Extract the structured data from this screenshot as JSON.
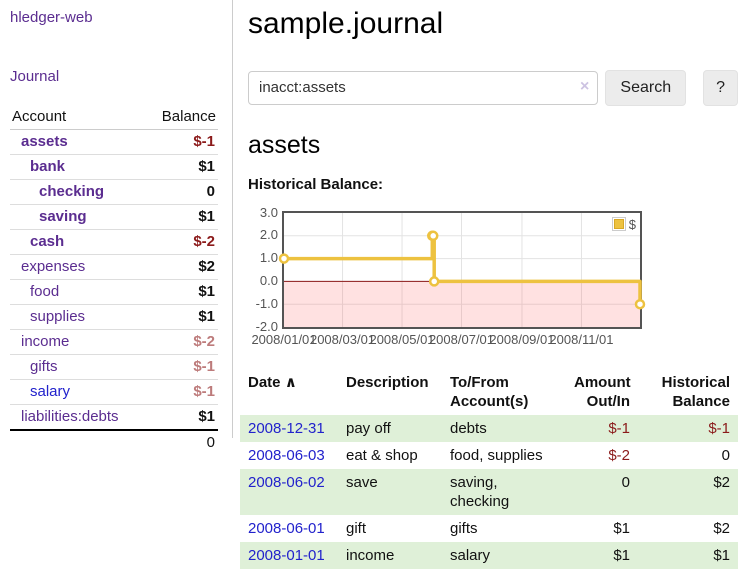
{
  "colors": {
    "accent_purple": "#5b2d90",
    "link_blue": "#2222cc",
    "negative_strong": "#8b1a1a",
    "negative_soft": "#bd7b7b",
    "row_stripe_green": "#dff0d8",
    "chart_line_gold": "#edc240",
    "chart_negative_region": "rgba(255,90,90,0.18)",
    "chart_zero_line": "#8b1a1a"
  },
  "sidebar": {
    "app_title": "hledger-web",
    "journal_link": "Journal",
    "account_header": "Account",
    "balance_header": "Balance",
    "accounts": [
      {
        "name": "assets",
        "balance": "$-1",
        "level": 0,
        "bold": true,
        "neg": "strong"
      },
      {
        "name": "bank",
        "balance": "$1",
        "level": 1,
        "bold": true,
        "neg": null
      },
      {
        "name": "checking",
        "balance": "0",
        "level": 2,
        "bold": true,
        "neg": null
      },
      {
        "name": "saving",
        "balance": "$1",
        "level": 2,
        "bold": true,
        "neg": null
      },
      {
        "name": "cash",
        "balance": "$-2",
        "level": 1,
        "bold": true,
        "neg": "strong"
      },
      {
        "name": "expenses",
        "balance": "$2",
        "level": 0,
        "bold": false,
        "neg": null
      },
      {
        "name": "food",
        "balance": "$1",
        "level": 1,
        "bold": false,
        "neg": null
      },
      {
        "name": "supplies",
        "balance": "$1",
        "level": 1,
        "bold": false,
        "neg": null
      },
      {
        "name": "income",
        "balance": "$-2",
        "level": 0,
        "bold": false,
        "neg": "soft"
      },
      {
        "name": "gifts",
        "balance": "$-1",
        "level": 1,
        "bold": false,
        "neg": "soft"
      },
      {
        "name": "salary",
        "balance": "$-1",
        "level": 1,
        "bold": false,
        "neg": "soft",
        "blue": true
      },
      {
        "name": "liabilities:debts",
        "balance": "$1",
        "level": 0,
        "bold": false,
        "neg": null
      }
    ],
    "total": "0"
  },
  "main": {
    "title": "sample.journal",
    "search": {
      "value": "inacct:assets",
      "clear_icon": "×",
      "search_button": "Search",
      "help_button": "?"
    },
    "account_title": "assets",
    "chart_heading": "Historical Balance:"
  },
  "chart_data": {
    "type": "line",
    "style": "step",
    "title": "Historical Balance",
    "series": [
      {
        "name": "$",
        "color": "#edc240",
        "points": [
          [
            "2008-01-01",
            1
          ],
          [
            "2008-06-01",
            2
          ],
          [
            "2008-06-02",
            2
          ],
          [
            "2008-06-03",
            0
          ],
          [
            "2008-12-31",
            -1
          ]
        ]
      }
    ],
    "x_range": [
      "2008-01-01",
      "2008-12-31"
    ],
    "x_tick_dates": [
      "2008-01-01",
      "2008-03-01",
      "2008-05-01",
      "2008-07-01",
      "2008-09-01",
      "2008-11-01"
    ],
    "x_ticks": [
      "2008/01/01",
      "2008/03/01",
      "2008/05/01",
      "2008/07/01",
      "2008/09/01",
      "2008/11/01"
    ],
    "y_ticks": [
      "3.0",
      "2.0",
      "1.0",
      "0.0",
      "-1.0",
      "-2.0"
    ],
    "ylim": [
      -2,
      3
    ],
    "grid": true,
    "legend": {
      "label": "$",
      "position": "top-right"
    },
    "negative_region_color": "rgba(255,90,90,0.18)",
    "zero_line_color": "#8b1a1a"
  },
  "register": {
    "headers": {
      "date": "Date",
      "description": "Description",
      "to_from": "To/From Account(s)",
      "amount": "Amount Out/In",
      "balance": "Historical Balance"
    },
    "sort_icon": "∧",
    "rows": [
      {
        "date": "2008-12-31",
        "description": "pay off",
        "accounts": [
          "debts"
        ],
        "amount": "$-1",
        "balance": "$-1"
      },
      {
        "date": "2008-06-03",
        "description": "eat & shop",
        "accounts": [
          "food",
          "supplies"
        ],
        "amount": "$-2",
        "balance": "0"
      },
      {
        "date": "2008-06-02",
        "description": "save",
        "accounts": [
          "saving",
          "checking"
        ],
        "amount": "0",
        "balance": "$2"
      },
      {
        "date": "2008-06-01",
        "description": "gift",
        "accounts": [
          "gifts"
        ],
        "amount": "$1",
        "balance": "$2"
      },
      {
        "date": "2008-01-01",
        "description": "income",
        "accounts": [
          "salary"
        ],
        "amount": "$1",
        "balance": "$1"
      }
    ]
  }
}
